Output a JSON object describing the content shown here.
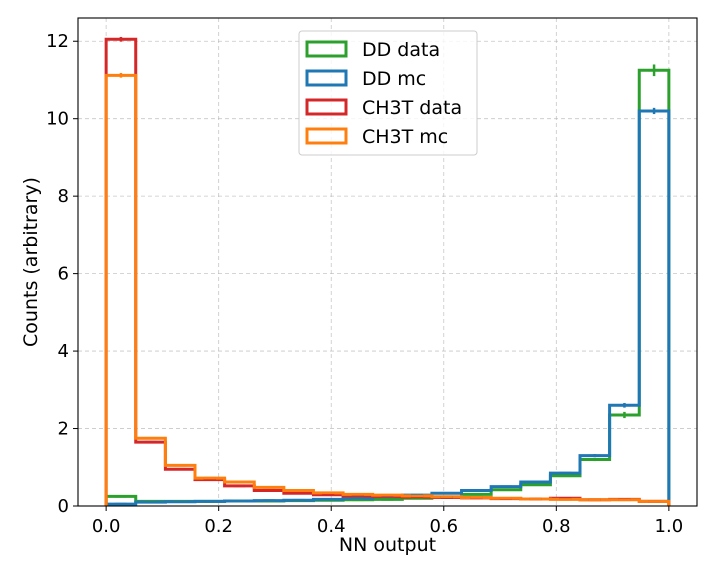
{
  "chart_data": {
    "type": "histogram",
    "title": "",
    "xlabel": "NN output",
    "ylabel": "Counts (arbitrary)",
    "xlim": [
      -0.05,
      1.05
    ],
    "ylim": [
      0,
      12.6
    ],
    "grid": true,
    "legend_position": "top-center",
    "x_ticks": [
      0.0,
      0.2,
      0.4,
      0.6,
      0.8,
      1.0
    ],
    "x_tick_labels": [
      "0.0",
      "0.2",
      "0.4",
      "0.6",
      "0.8",
      "1.0"
    ],
    "y_ticks": [
      0,
      2,
      4,
      6,
      8,
      10,
      12
    ],
    "y_tick_labels": [
      "0",
      "2",
      "4",
      "6",
      "8",
      "10",
      "12"
    ],
    "bin_edges": [
      0.0,
      0.0526,
      0.1053,
      0.1579,
      0.2105,
      0.2632,
      0.3158,
      0.3684,
      0.4211,
      0.4737,
      0.5263,
      0.5789,
      0.6316,
      0.6842,
      0.7368,
      0.7895,
      0.8421,
      0.8947,
      0.9474,
      1.0
    ],
    "series": [
      {
        "name": "DD data",
        "color": "#2ca02c",
        "values": [
          0.25,
          0.12,
          0.12,
          0.12,
          0.13,
          0.13,
          0.14,
          0.15,
          0.16,
          0.17,
          0.2,
          0.22,
          0.3,
          0.42,
          0.55,
          0.78,
          1.2,
          2.35,
          11.25
        ],
        "errors": [
          0.02,
          0.01,
          0.01,
          0.01,
          0.01,
          0.01,
          0.01,
          0.01,
          0.01,
          0.01,
          0.01,
          0.01,
          0.01,
          0.02,
          0.02,
          0.03,
          0.04,
          0.08,
          0.15
        ]
      },
      {
        "name": "DD mc",
        "color": "#1f77b4",
        "values": [
          0.05,
          0.1,
          0.11,
          0.12,
          0.13,
          0.14,
          0.15,
          0.17,
          0.2,
          0.24,
          0.28,
          0.33,
          0.4,
          0.5,
          0.62,
          0.85,
          1.3,
          2.6,
          10.2
        ],
        "errors": [
          0.01,
          0.01,
          0.01,
          0.01,
          0.01,
          0.01,
          0.01,
          0.01,
          0.01,
          0.01,
          0.01,
          0.01,
          0.01,
          0.02,
          0.02,
          0.03,
          0.04,
          0.06,
          0.08
        ]
      },
      {
        "name": "CH3T data",
        "color": "#d62728",
        "values": [
          12.05,
          1.65,
          0.95,
          0.68,
          0.52,
          0.4,
          0.33,
          0.29,
          0.26,
          0.25,
          0.23,
          0.22,
          0.21,
          0.19,
          0.18,
          0.2,
          0.16,
          0.17,
          0.12
        ],
        "errors": [
          0.06,
          0.03,
          0.02,
          0.02,
          0.01,
          0.01,
          0.01,
          0.01,
          0.01,
          0.01,
          0.01,
          0.01,
          0.01,
          0.01,
          0.01,
          0.01,
          0.01,
          0.01,
          0.01
        ]
      },
      {
        "name": "CH3T mc",
        "color": "#ff7f0e",
        "values": [
          11.12,
          1.75,
          1.05,
          0.72,
          0.62,
          0.48,
          0.4,
          0.34,
          0.3,
          0.28,
          0.26,
          0.24,
          0.22,
          0.2,
          0.18,
          0.17,
          0.16,
          0.16,
          0.12
        ],
        "errors": [
          0.06,
          0.03,
          0.02,
          0.02,
          0.01,
          0.01,
          0.01,
          0.01,
          0.01,
          0.01,
          0.01,
          0.01,
          0.01,
          0.01,
          0.01,
          0.01,
          0.01,
          0.01,
          0.01
        ]
      }
    ]
  }
}
